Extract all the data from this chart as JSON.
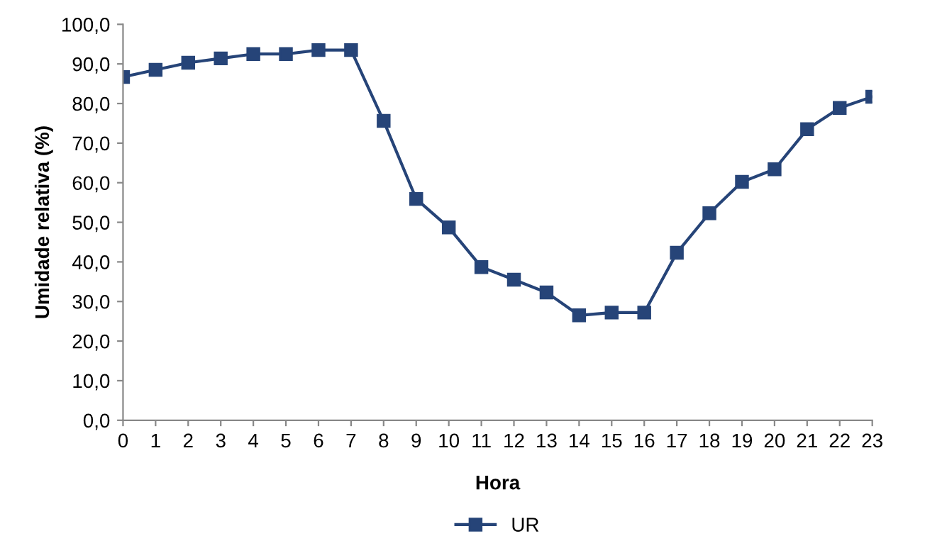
{
  "chart_data": {
    "type": "line",
    "xlabel": "Hora",
    "ylabel": "Umidade relativa (%)",
    "categories": [
      "0",
      "1",
      "2",
      "3",
      "4",
      "5",
      "6",
      "7",
      "8",
      "9",
      "10",
      "11",
      "12",
      "13",
      "14",
      "15",
      "16",
      "17",
      "18",
      "19",
      "20",
      "21",
      "22",
      "23"
    ],
    "series": [
      {
        "name": "UR",
        "color": "#264478",
        "values": [
          86.7,
          88.5,
          90.3,
          91.4,
          92.5,
          92.5,
          93.5,
          93.5,
          75.6,
          55.9,
          48.7,
          38.7,
          35.5,
          32.3,
          26.5,
          27.2,
          27.2,
          42.3,
          52.3,
          60.2,
          63.4,
          73.5,
          78.9,
          81.7
        ]
      }
    ],
    "ylim": [
      0,
      100
    ],
    "yticks": [
      {
        "value": 0,
        "label": "0,0"
      },
      {
        "value": 10,
        "label": "10,0"
      },
      {
        "value": 20,
        "label": "20,0"
      },
      {
        "value": 30,
        "label": "30,0"
      },
      {
        "value": 40,
        "label": "40,0"
      },
      {
        "value": 50,
        "label": "50,0"
      },
      {
        "value": 60,
        "label": "60,0"
      },
      {
        "value": 70,
        "label": "70,0"
      },
      {
        "value": 80,
        "label": "80,0"
      },
      {
        "value": 90,
        "label": "90,0"
      },
      {
        "value": 100,
        "label": "100,0"
      }
    ],
    "grid": false,
    "legend": "bottom",
    "marker": "square",
    "line_style": "solid"
  }
}
